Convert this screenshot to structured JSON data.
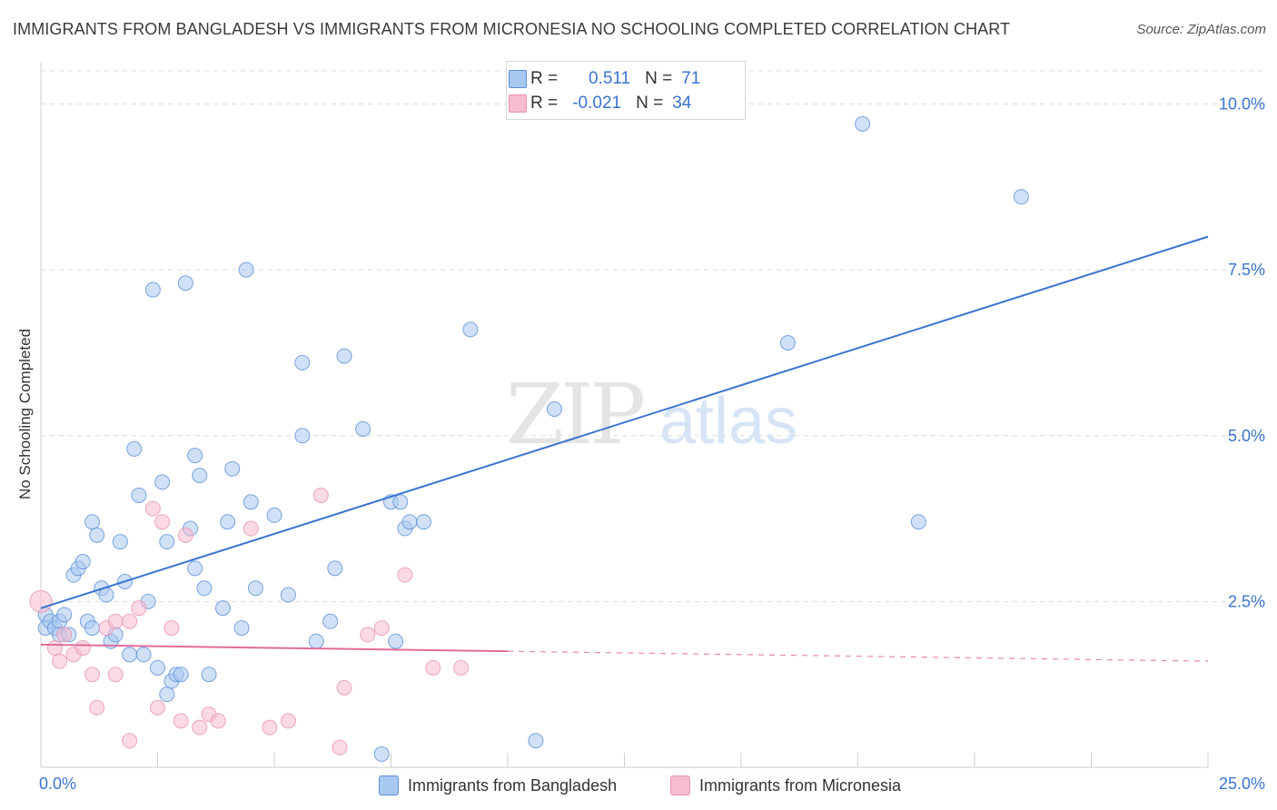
{
  "title": "IMMIGRANTS FROM BANGLADESH VS IMMIGRANTS FROM MICRONESIA NO SCHOOLING COMPLETED CORRELATION CHART",
  "source": "Source: ZipAtlas.com",
  "watermark": {
    "zip": "ZIP",
    "atlas": "atlas"
  },
  "legend_stats": {
    "bangladesh": {
      "r_label": "R =",
      "r_value": "0.511",
      "n_label": "N =",
      "n_value": "71"
    },
    "micronesia": {
      "r_label": "R =",
      "r_value": "-0.021",
      "n_label": "N =",
      "n_value": "34"
    }
  },
  "bottom_legend": {
    "bangladesh": "Immigrants from Bangladesh",
    "micronesia": "Immigrants from Micronesia"
  },
  "colors": {
    "bangladesh_fill": "#a9c8f0",
    "bangladesh_stroke": "#5b8fd8",
    "bangladesh_line": "#3a74d0",
    "micronesia_fill": "#f7bcd0",
    "micronesia_stroke": "#e892ae",
    "micronesia_line": "#e06c99",
    "axis_text": "#3a74d0",
    "grid": "#dcdcdc"
  },
  "chart_data": {
    "type": "scatter",
    "title": "IMMIGRANTS FROM BANGLADESH VS IMMIGRANTS FROM MICRONESIA NO SCHOOLING COMPLETED CORRELATION CHART",
    "xlabel": "",
    "ylabel": "No Schooling Completed",
    "xlim": [
      0,
      25
    ],
    "ylim": [
      0,
      10.5
    ],
    "x_tick_labels": [
      "0.0%",
      "25.0%"
    ],
    "y_ticks": [
      2.5,
      5.0,
      7.5,
      10.0
    ],
    "y_tick_labels": [
      "2.5%",
      "5.0%",
      "7.5%",
      "10.0%"
    ],
    "grid": true,
    "series": [
      {
        "name": "Immigrants from Bangladesh",
        "trend": {
          "x": [
            0,
            25
          ],
          "y": [
            2.4,
            8.0
          ],
          "style": "solid"
        },
        "points": [
          [
            0.1,
            2.3
          ],
          [
            0.1,
            2.1
          ],
          [
            0.2,
            2.2
          ],
          [
            0.3,
            2.1
          ],
          [
            0.4,
            2.2
          ],
          [
            0.4,
            2.0
          ],
          [
            0.5,
            2.3
          ],
          [
            0.6,
            2.0
          ],
          [
            0.7,
            2.9
          ],
          [
            0.8,
            3.0
          ],
          [
            0.9,
            3.1
          ],
          [
            1.0,
            2.2
          ],
          [
            1.1,
            3.7
          ],
          [
            1.1,
            2.1
          ],
          [
            1.2,
            3.5
          ],
          [
            1.3,
            2.7
          ],
          [
            1.4,
            2.6
          ],
          [
            1.5,
            1.9
          ],
          [
            1.6,
            2.0
          ],
          [
            1.7,
            3.4
          ],
          [
            1.8,
            2.8
          ],
          [
            1.9,
            1.7
          ],
          [
            2.0,
            4.8
          ],
          [
            2.1,
            4.1
          ],
          [
            2.2,
            1.7
          ],
          [
            2.3,
            2.5
          ],
          [
            2.4,
            7.2
          ],
          [
            2.5,
            1.5
          ],
          [
            2.6,
            4.3
          ],
          [
            2.7,
            1.1
          ],
          [
            2.7,
            3.4
          ],
          [
            2.8,
            1.3
          ],
          [
            2.9,
            1.4
          ],
          [
            3.0,
            1.4
          ],
          [
            3.1,
            7.3
          ],
          [
            3.2,
            3.6
          ],
          [
            3.3,
            3.0
          ],
          [
            3.3,
            4.7
          ],
          [
            3.4,
            4.4
          ],
          [
            3.5,
            2.7
          ],
          [
            3.6,
            1.4
          ],
          [
            3.9,
            2.4
          ],
          [
            4.0,
            3.7
          ],
          [
            4.1,
            4.5
          ],
          [
            4.3,
            2.1
          ],
          [
            4.4,
            7.5
          ],
          [
            4.5,
            4.0
          ],
          [
            4.6,
            2.7
          ],
          [
            5.0,
            3.8
          ],
          [
            5.3,
            2.6
          ],
          [
            5.6,
            6.1
          ],
          [
            5.6,
            5.0
          ],
          [
            5.9,
            1.9
          ],
          [
            6.2,
            2.2
          ],
          [
            6.3,
            3.0
          ],
          [
            6.5,
            6.2
          ],
          [
            6.9,
            5.1
          ],
          [
            7.3,
            0.2
          ],
          [
            7.5,
            4.0
          ],
          [
            7.6,
            1.9
          ],
          [
            7.7,
            4.0
          ],
          [
            7.8,
            3.6
          ],
          [
            7.9,
            3.7
          ],
          [
            8.2,
            3.7
          ],
          [
            9.2,
            6.6
          ],
          [
            10.6,
            0.4
          ],
          [
            11.0,
            5.4
          ],
          [
            16.0,
            6.4
          ],
          [
            17.6,
            9.7
          ],
          [
            18.8,
            3.7
          ],
          [
            21.0,
            8.6
          ]
        ]
      },
      {
        "name": "Immigrants from Micronesia",
        "trend": {
          "x": [
            0,
            10,
            25
          ],
          "y": [
            1.85,
            1.75,
            1.6
          ],
          "style": "solid-then-dashed"
        },
        "points": [
          [
            0.0,
            2.5
          ],
          [
            0.3,
            1.8
          ],
          [
            0.4,
            1.6
          ],
          [
            0.5,
            2.0
          ],
          [
            0.7,
            1.7
          ],
          [
            0.9,
            1.8
          ],
          [
            1.1,
            1.4
          ],
          [
            1.2,
            0.9
          ],
          [
            1.4,
            2.1
          ],
          [
            1.6,
            1.4
          ],
          [
            1.6,
            2.2
          ],
          [
            1.9,
            0.4
          ],
          [
            1.9,
            2.2
          ],
          [
            2.1,
            2.4
          ],
          [
            2.4,
            3.9
          ],
          [
            2.5,
            0.9
          ],
          [
            2.6,
            3.7
          ],
          [
            2.8,
            2.1
          ],
          [
            3.0,
            0.7
          ],
          [
            3.1,
            3.5
          ],
          [
            3.4,
            0.6
          ],
          [
            3.6,
            0.8
          ],
          [
            3.8,
            0.7
          ],
          [
            4.5,
            3.6
          ],
          [
            4.9,
            0.6
          ],
          [
            5.3,
            0.7
          ],
          [
            6.0,
            4.1
          ],
          [
            6.4,
            0.3
          ],
          [
            6.5,
            1.2
          ],
          [
            7.0,
            2.0
          ],
          [
            7.3,
            2.1
          ],
          [
            7.8,
            2.9
          ],
          [
            8.4,
            1.5
          ],
          [
            9.0,
            1.5
          ]
        ]
      }
    ]
  }
}
